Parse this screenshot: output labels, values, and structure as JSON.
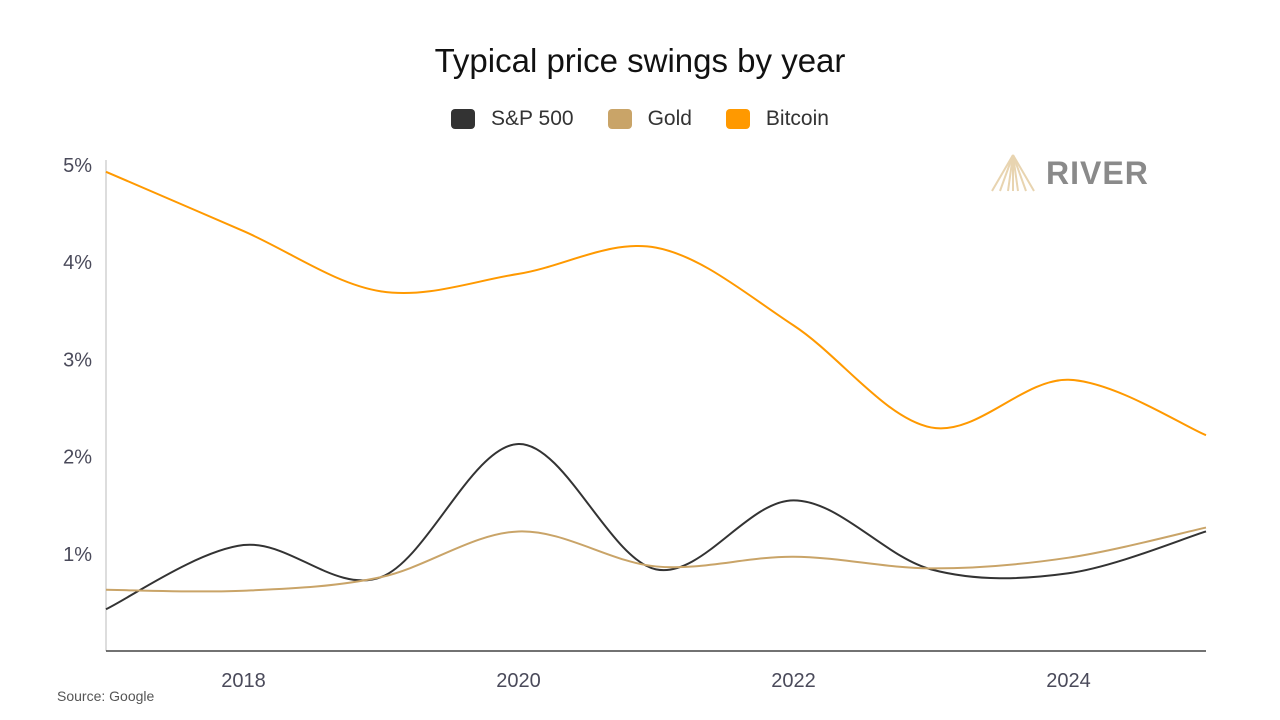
{
  "chart_data": {
    "type": "line",
    "title": "Typical price swings by year",
    "x": [
      2017,
      2018,
      2019,
      2020,
      2021,
      2022,
      2023,
      2024,
      2025
    ],
    "x_tick_labels": [
      "2018",
      "2020",
      "2022",
      "2024"
    ],
    "x_ticks": [
      2018,
      2020,
      2022,
      2024
    ],
    "y_tick_labels": [
      "1%",
      "2%",
      "3%",
      "4%",
      "5%"
    ],
    "y_ticks": [
      1,
      2,
      3,
      4,
      5
    ],
    "xlim": [
      2017,
      2025
    ],
    "ylim": [
      0,
      5
    ],
    "grid": false,
    "legend_position": "top",
    "series": [
      {
        "name": "S&P 500",
        "color": "#333333",
        "values": [
          0.43,
          1.09,
          0.76,
          2.13,
          0.84,
          1.55,
          0.84,
          0.8,
          1.23
        ]
      },
      {
        "name": "Gold",
        "color": "#c9a468",
        "values": [
          0.63,
          0.62,
          0.76,
          1.23,
          0.87,
          0.97,
          0.85,
          0.96,
          1.27
        ]
      },
      {
        "name": "Bitcoin",
        "color": "#ff9900",
        "values": [
          4.93,
          4.32,
          3.7,
          3.88,
          4.15,
          3.35,
          2.3,
          2.79,
          2.22
        ]
      }
    ]
  },
  "source": "Source: Google",
  "logo": {
    "text": "RIVER",
    "color": "#8a8a8a",
    "mark_color": "#e8d4b0"
  }
}
